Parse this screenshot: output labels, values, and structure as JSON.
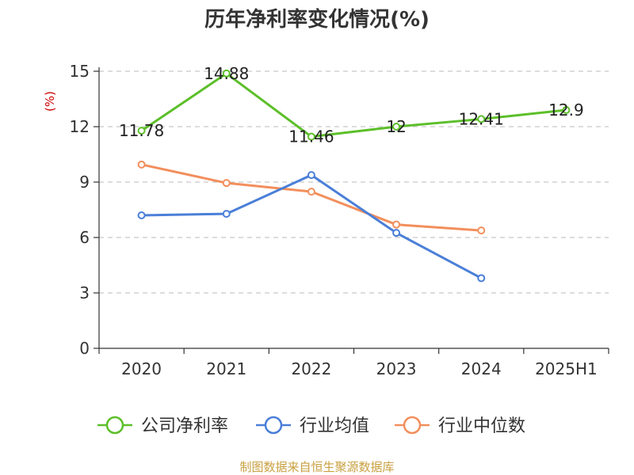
{
  "chart_data": {
    "type": "line",
    "title": "历年净利率变化情况(%)",
    "ylabel": "(%)",
    "xlabel": "",
    "ylim": [
      0,
      15
    ],
    "yticks": [
      0,
      3,
      6,
      9,
      12,
      15
    ],
    "grid": true,
    "legend_position": "bottom",
    "categories": [
      "2020",
      "2021",
      "2022",
      "2023",
      "2024",
      "2025H1"
    ],
    "series": [
      {
        "name": "公司净利率",
        "color": "#5cbf2a",
        "values": [
          11.78,
          14.88,
          11.46,
          12,
          12.41,
          12.9
        ],
        "data_labels": [
          "11.78",
          "14.88",
          "11.46",
          "12",
          "12.41",
          "12.9"
        ]
      },
      {
        "name": "行业均值",
        "color": "#4a7fd8",
        "values": [
          7.2,
          7.28,
          9.38,
          6.25,
          3.8,
          null
        ]
      },
      {
        "name": "行业中位数",
        "color": "#f28f5c",
        "values": [
          9.95,
          8.95,
          8.48,
          6.7,
          6.38,
          null
        ]
      }
    ]
  },
  "footer": {
    "source": "制图数据来自恒生聚源数据库"
  }
}
